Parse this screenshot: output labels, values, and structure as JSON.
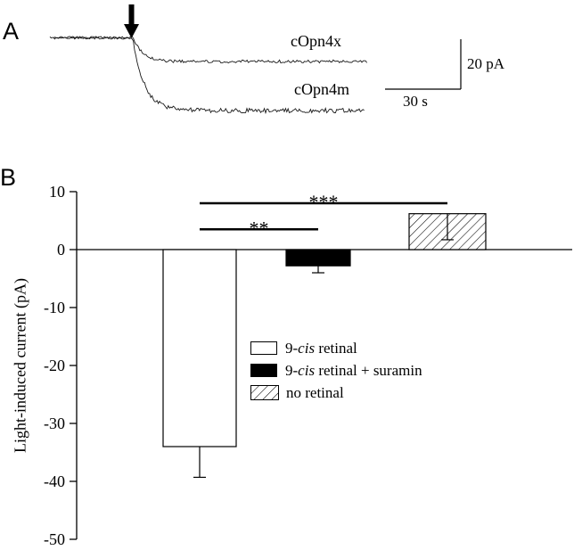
{
  "figure": {
    "panel_a": {
      "label": "A",
      "traces": [
        {
          "label": "cOpn4x",
          "approx_amplitude_pA": -9
        },
        {
          "label": "cOpn4m",
          "approx_amplitude_pA": -28
        }
      ],
      "stimulus_marker": "arrow-down",
      "scale_bar": {
        "vertical": "20 pA",
        "horizontal": "30 s"
      }
    },
    "panel_b": {
      "label": "B"
    }
  },
  "chart_data": {
    "type": "bar",
    "title": "",
    "xlabel": "",
    "ylabel": "Light-induced current (pA)",
    "ylim": [
      -50,
      10
    ],
    "yticks": [
      10,
      0,
      -10,
      -20,
      -30,
      -40,
      -50
    ],
    "grid": false,
    "categories": [
      "9-cis retinal",
      "9-cis retinal + suramin",
      "no retinal"
    ],
    "values": [
      -34,
      -2.8,
      6.2
    ],
    "errors": [
      5.3,
      1.2,
      4.5
    ],
    "bar_styles": [
      "open",
      "filled",
      "hatched"
    ],
    "significance": [
      {
        "label": "**",
        "from": 0,
        "to": 1,
        "y": 3.5
      },
      {
        "label": "***",
        "from": 0,
        "to": 2,
        "y": 8
      }
    ],
    "legend_position": "center-right",
    "legend": [
      {
        "style": "open",
        "pre": "9-",
        "it": "cis",
        "post": " retinal"
      },
      {
        "style": "filled",
        "pre": "9-",
        "it": "cis",
        "post": " retinal + suramin"
      },
      {
        "style": "hatched",
        "pre": "",
        "it": "",
        "post": "no retinal"
      }
    ]
  }
}
